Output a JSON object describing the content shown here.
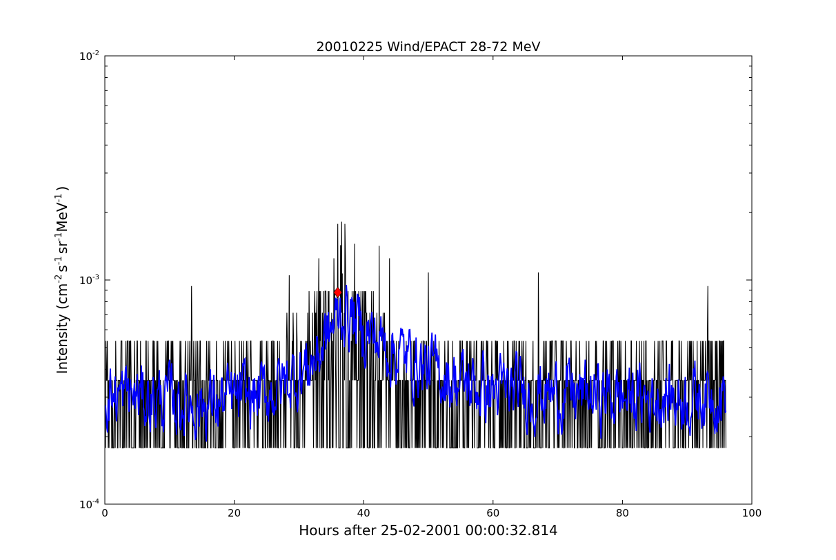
{
  "chart_data": {
    "type": "line",
    "title": "20010225 Wind/EPACT 28-72 MeV",
    "xlabel": "Hours after 25-02-2001 00:00:32.814",
    "ylabel": "Intensity (cm",
    "ylabel_parts": {
      "base": "Intensity (cm",
      "exp1": "-2",
      "s": "s",
      "exp2": "-1",
      "sr": "sr",
      "exp3": "-1",
      "mev": "MeV",
      "exp4": "-1",
      "close": ")"
    },
    "xlim": [
      0,
      100
    ],
    "ylim": [
      0.0001,
      0.01
    ],
    "yscale": "log",
    "grid": false,
    "xticks": [
      0,
      20,
      40,
      60,
      80,
      100
    ],
    "xtick_labels": [
      "0",
      "20",
      "40",
      "60",
      "80",
      "100"
    ],
    "yticks": [
      {
        "value": 0.0001,
        "base": "10",
        "exp": "-4"
      },
      {
        "value": 0.001,
        "base": "10",
        "exp": "-3"
      },
      {
        "value": 0.01,
        "base": "10",
        "exp": "-2"
      }
    ],
    "series": [
      {
        "role": "raw",
        "color": "#000000",
        "x_range": [
          0.1,
          96
        ],
        "levels": [
          0.000178,
          0.000357,
          0.000535,
          0.000714,
          0.000892,
          0.00107,
          0.00125,
          0.00143,
          0.00161,
          0.00178
        ],
        "baseline_level": 0.000178,
        "peak_hour": 36,
        "notable_spikes": [
          {
            "x": 13.4,
            "y": 0.00094
          },
          {
            "x": 28.5,
            "y": 0.00105
          },
          {
            "x": 36.0,
            "y": 0.00178
          },
          {
            "x": 36.6,
            "y": 0.00182
          },
          {
            "x": 37.1,
            "y": 0.00178
          },
          {
            "x": 38.6,
            "y": 0.00145
          },
          {
            "x": 42.4,
            "y": 0.00142
          },
          {
            "x": 44.0,
            "y": 0.00125
          },
          {
            "x": 50.0,
            "y": 0.00108
          },
          {
            "x": 67.0,
            "y": 0.00108
          },
          {
            "x": 93.2,
            "y": 0.00094
          }
        ]
      },
      {
        "role": "smoothed",
        "color": "#0000ff",
        "x_range": [
          0.1,
          96
        ],
        "profile": [
          [
            0,
            0.00031
          ],
          [
            5,
            0.0003
          ],
          [
            10,
            0.00029
          ],
          [
            15,
            0.00028
          ],
          [
            20,
            0.00029
          ],
          [
            25,
            0.00031
          ],
          [
            28,
            0.00035
          ],
          [
            31,
            0.0004
          ],
          [
            33,
            0.00047
          ],
          [
            35,
            0.0006
          ],
          [
            36.5,
            0.00072
          ],
          [
            38,
            0.0007
          ],
          [
            40,
            0.0006
          ],
          [
            43,
            0.00052
          ],
          [
            46,
            0.00046
          ],
          [
            50,
            0.0004
          ],
          [
            55,
            0.00035
          ],
          [
            60,
            0.00032
          ],
          [
            70,
            0.00031
          ],
          [
            80,
            0.0003
          ],
          [
            90,
            0.0003
          ],
          [
            96,
            0.00032
          ]
        ]
      }
    ],
    "marker": {
      "shape": "diamond",
      "color": "#ff0000",
      "x": 36.0,
      "y": 0.00088
    }
  }
}
